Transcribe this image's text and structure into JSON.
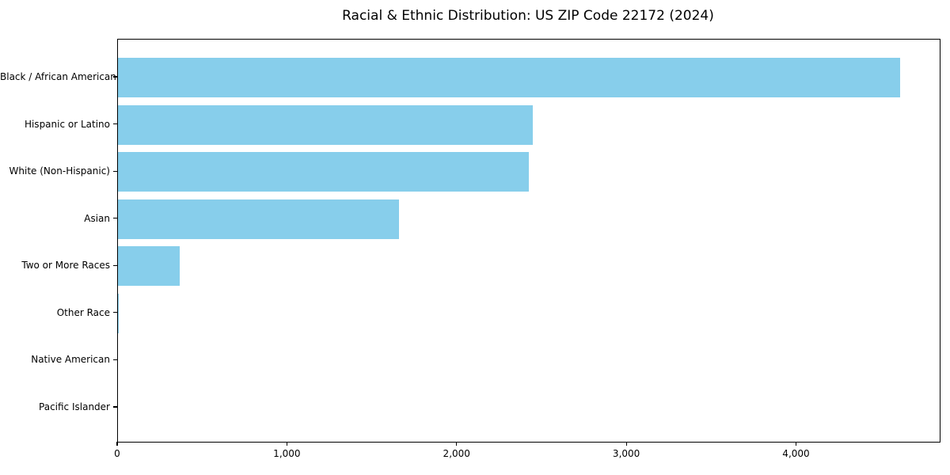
{
  "chart_data": {
    "type": "bar",
    "orientation": "horizontal",
    "title": "Racial & Ethnic Distribution: US ZIP Code 22172 (2024)",
    "categories": [
      "Black / African American",
      "Hispanic or Latino",
      "White (Non-Hispanic)",
      "Asian",
      "Two or More Races",
      "Other Race",
      "Native American",
      "Pacific Islander"
    ],
    "values": [
      4610,
      2443,
      2420,
      1655,
      362,
      5,
      0,
      0
    ],
    "xlabel": "",
    "ylabel": "",
    "x_ticks": [
      0,
      1000,
      2000,
      3000,
      4000
    ],
    "x_tick_labels": [
      "0",
      "1,000",
      "2,000",
      "3,000",
      "4,000"
    ],
    "xlim": [
      0,
      4842
    ],
    "bar_color": "#87CEEB",
    "text_color": "#000000",
    "grid": false,
    "legend": null
  }
}
